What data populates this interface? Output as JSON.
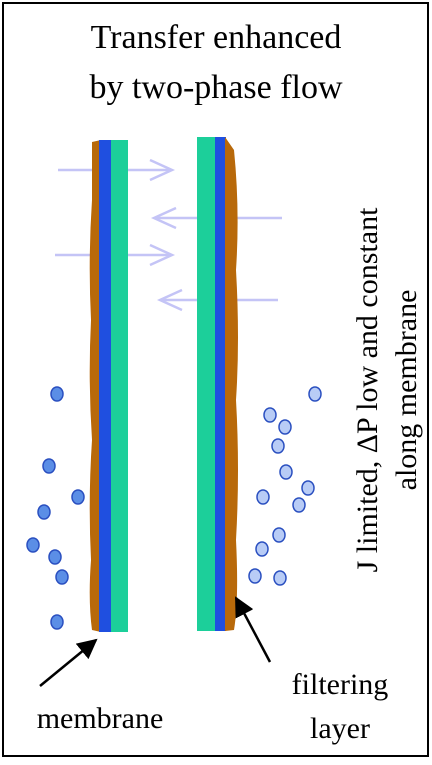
{
  "title": {
    "lines": [
      "Transfer enhanced",
      "by two-phase flow"
    ]
  },
  "side_text": {
    "lines": [
      "J limited, ΔP low and constant",
      "along membrane"
    ]
  },
  "labels": {
    "membrane": "membrane",
    "filtering_layer": [
      "filtering",
      "layer"
    ]
  }
}
